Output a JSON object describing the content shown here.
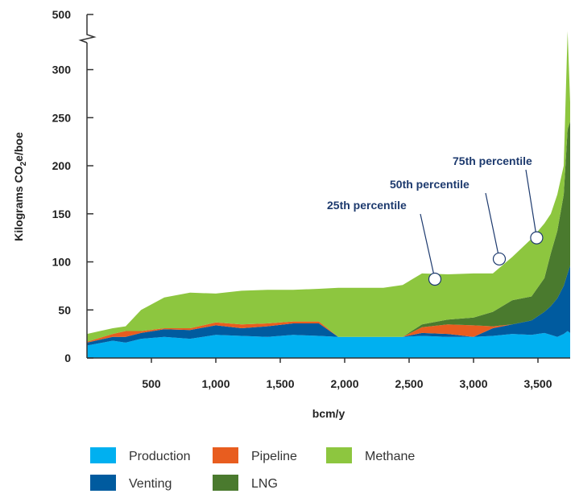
{
  "chart_data": {
    "type": "area",
    "title": "",
    "xlabel": "bcm/y",
    "ylabel": "Kilograms CO",
    "ylabel_sub": "2",
    "ylabel_suffix": "e/boe",
    "xlim": [
      0,
      3750
    ],
    "ylim": [
      0,
      340
    ],
    "x_ticks": [
      500,
      1000,
      1500,
      2000,
      2500,
      3000,
      3500
    ],
    "x_tick_labels": [
      "500",
      "1,000",
      "1,500",
      "2,000",
      "2,500",
      "3,000",
      "3,500"
    ],
    "y_ticks": [
      0,
      50,
      100,
      150,
      200,
      250,
      300
    ],
    "y_tick_labels": [
      "0",
      "50",
      "100",
      "150",
      "200",
      "250",
      "300"
    ],
    "y_break_label": "500",
    "grid": false,
    "legend_position": "bottom",
    "stack_order": [
      "Production",
      "Venting",
      "Pipeline",
      "LNG",
      "Methane"
    ],
    "x": [
      0,
      200,
      300,
      420,
      600,
      800,
      1000,
      1200,
      1400,
      1600,
      1800,
      1950,
      2100,
      2300,
      2450,
      2600,
      2800,
      3000,
      3150,
      3300,
      3450,
      3550,
      3600,
      3650,
      3700,
      3730,
      3750
    ],
    "series": [
      {
        "name": "Production",
        "color": "#00b0f0",
        "values": [
          13,
          18,
          16,
          20,
          22,
          20,
          24,
          23,
          22,
          24,
          23,
          22,
          22,
          22,
          22,
          23,
          22,
          22,
          23,
          25,
          24,
          26,
          24,
          22,
          25,
          28,
          26
        ]
      },
      {
        "name": "Venting",
        "color": "#005b9f",
        "values": [
          3,
          4,
          6,
          6,
          8,
          9,
          10,
          8,
          11,
          12,
          13,
          0,
          0,
          0,
          0,
          3,
          3,
          0,
          8,
          10,
          15,
          22,
          30,
          40,
          50,
          60,
          70
        ]
      },
      {
        "name": "Pipeline",
        "color": "#e85d1f",
        "values": [
          1,
          3,
          6,
          2,
          1,
          2,
          3,
          4,
          3,
          2,
          2,
          0,
          0,
          0,
          0,
          6,
          10,
          12,
          2,
          0,
          0,
          0,
          0,
          0,
          0,
          0,
          0
        ]
      },
      {
        "name": "LNG",
        "color": "#4a7a2e",
        "values": [
          0,
          0,
          0,
          0,
          0,
          0,
          0,
          0,
          0,
          0,
          0,
          0,
          0,
          0,
          0,
          3,
          5,
          8,
          15,
          25,
          25,
          35,
          55,
          70,
          95,
          150,
          150
        ]
      },
      {
        "name": "Methane",
        "color": "#8dc63f",
        "values": [
          8,
          6,
          5,
          22,
          32,
          37,
          30,
          35,
          35,
          33,
          34,
          51,
          51,
          51,
          54,
          53,
          47,
          46,
          40,
          45,
          60,
          57,
          41,
          38,
          30,
          102,
          20
        ]
      }
    ],
    "annotations": [
      {
        "label": "25th percentile",
        "x": 2700,
        "y": 82
      },
      {
        "label": "50th percentile",
        "x": 3200,
        "y": 103
      },
      {
        "label": "75th percentile",
        "x": 3490,
        "y": 125
      }
    ],
    "legend": [
      {
        "label": "Production",
        "color": "#00b0f0"
      },
      {
        "label": "Pipeline",
        "color": "#e85d1f"
      },
      {
        "label": "Methane",
        "color": "#8dc63f"
      },
      {
        "label": "Venting",
        "color": "#005b9f"
      },
      {
        "label": "LNG",
        "color": "#4a7a2e"
      }
    ]
  }
}
